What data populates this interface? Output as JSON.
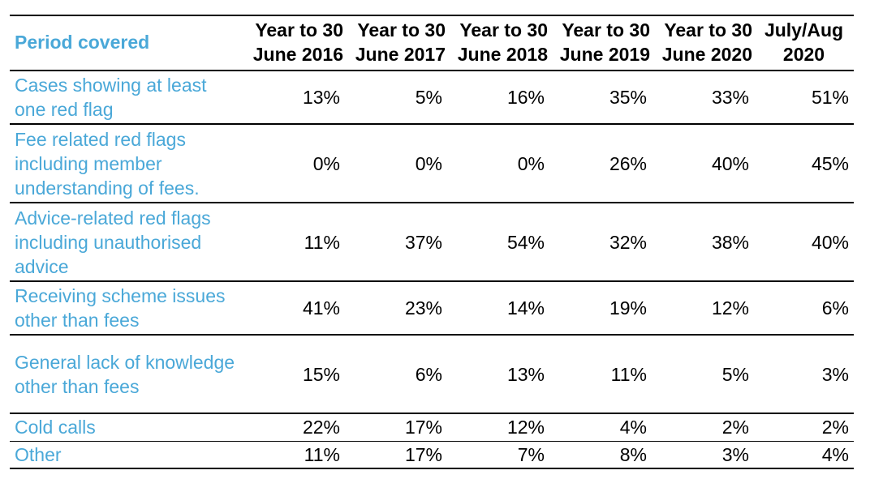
{
  "table": {
    "header": {
      "label": "Period covered",
      "periods": [
        {
          "line1": "Year to 30",
          "line2": "June 2016"
        },
        {
          "line1": "Year to 30",
          "line2": "June 2017"
        },
        {
          "line1": "Year to 30",
          "line2": "June 2018"
        },
        {
          "line1": "Year to 30",
          "line2": "June 2019"
        },
        {
          "line1": "Year to 30",
          "line2": "June 2020"
        },
        {
          "line1": "July/Aug",
          "line2": "2020"
        }
      ]
    },
    "rows": [
      {
        "label": "Cases showing at least one red flag",
        "values": [
          "13%",
          "5%",
          "16%",
          "35%",
          "33%",
          "51%"
        ]
      },
      {
        "label": "Fee related red flags including member understanding of fees.",
        "values": [
          "0%",
          "0%",
          "0%",
          "26%",
          "40%",
          "45%"
        ]
      },
      {
        "label": "Advice-related red flags including unauthorised advice",
        "values": [
          "11%",
          "37%",
          "54%",
          "32%",
          "38%",
          "40%"
        ]
      },
      {
        "label": "Receiving scheme issues other than fees",
        "values": [
          "41%",
          "23%",
          "14%",
          "19%",
          "12%",
          "6%"
        ]
      },
      {
        "label": "General lack of knowledge other than fees",
        "values": [
          "15%",
          "6%",
          "13%",
          "11%",
          "5%",
          "3%"
        ]
      },
      {
        "label": "Cold calls",
        "values": [
          "22%",
          "17%",
          "12%",
          "4%",
          "2%",
          "2%"
        ]
      },
      {
        "label": "Other",
        "values": [
          "11%",
          "17%",
          "7%",
          "8%",
          "3%",
          "4%"
        ]
      }
    ]
  },
  "colors": {
    "label_text": "#4aa8d8",
    "value_text": "#000000",
    "rule": "#000000"
  }
}
